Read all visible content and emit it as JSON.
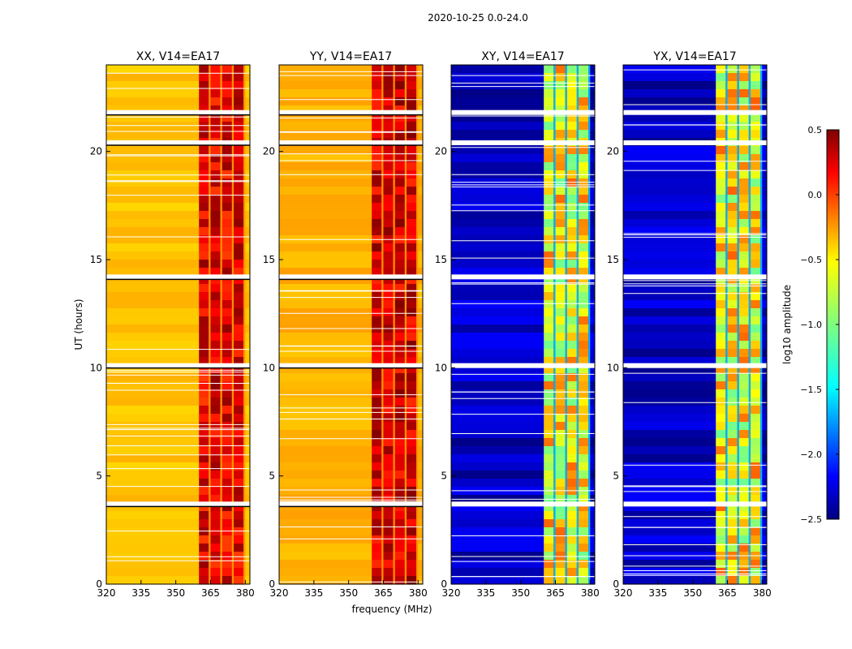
{
  "figure": {
    "suptitle": "2020-10-25 0.0-24.0",
    "xlabel": "frequency (MHz)",
    "ylabel": "UT (hours)"
  },
  "chart_data": {
    "type": "heatmap",
    "x": {
      "label": "frequency (MHz)",
      "range": [
        320,
        382
      ],
      "ticks": [
        320,
        335,
        350,
        365,
        380
      ],
      "tick_labels": [
        "320",
        "335",
        "350",
        "365",
        "380"
      ]
    },
    "y": {
      "label": "UT (hours)",
      "range": [
        0,
        24
      ],
      "ticks": [
        0,
        5,
        10,
        15,
        20
      ],
      "tick_labels": [
        "0",
        "5",
        "10",
        "15",
        "20"
      ]
    },
    "panels": [
      {
        "name": "XX",
        "title": "XX, V14=EA17",
        "baseline_log10_amp": -0.45,
        "rfi_log10_amp": 0.2
      },
      {
        "name": "YY",
        "title": "YY, V14=EA17",
        "baseline_log10_amp": -0.4,
        "rfi_log10_amp": 0.25
      },
      {
        "name": "XY",
        "title": "XY, V14=EA17",
        "baseline_log10_amp": -2.3,
        "rfi_log10_amp": -0.6
      },
      {
        "name": "YX",
        "title": "YX, V14=EA17",
        "baseline_log10_amp": -2.3,
        "rfi_log10_amp": -0.6
      }
    ],
    "rfi_band_mhz": [
      360,
      380
    ],
    "flagged_hours": [
      3.7,
      10.1,
      14.2,
      20.4,
      21.8
    ],
    "colorbar": {
      "label": "log10 amplitude",
      "range": [
        -2.5,
        0.5
      ],
      "ticks": [
        0.5,
        0.0,
        -0.5,
        -1.0,
        -1.5,
        -2.0,
        -2.5
      ],
      "tick_labels": [
        "0.5",
        "0.0",
        "−0.5",
        "−1.0",
        "−1.5",
        "−2.0",
        "−2.5"
      ],
      "colormap": "jet"
    }
  }
}
